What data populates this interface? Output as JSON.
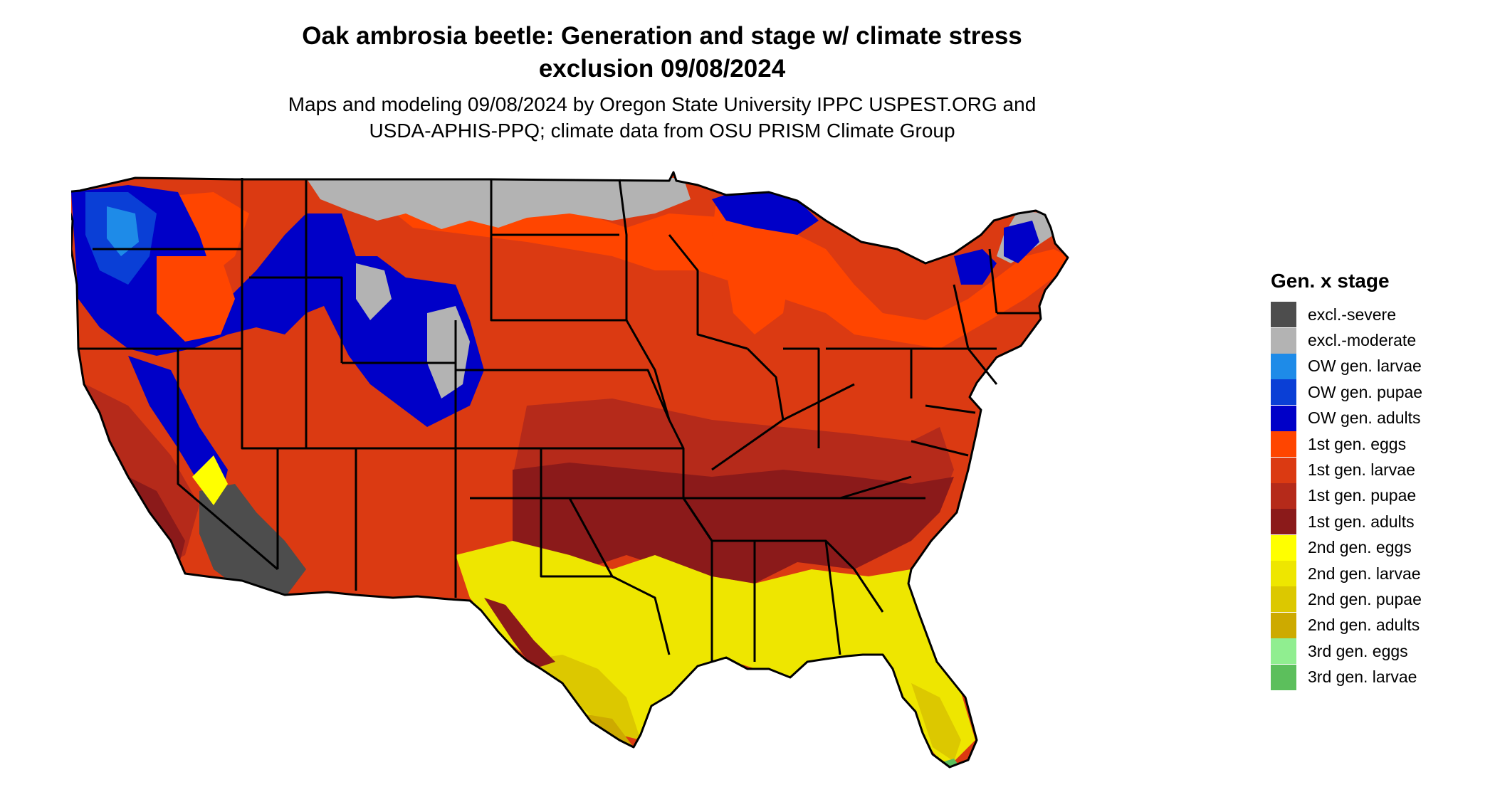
{
  "title": {
    "line1": "Oak ambrosia beetle: Generation and stage w/ climate stress",
    "line2": "exclusion 09/08/2024"
  },
  "subtitle": {
    "line1": "Maps and modeling 09/08/2024 by Oregon State University IPPC USPEST.ORG and",
    "line2": "USDA-APHIS-PPQ; climate data from OSU PRISM Climate Group"
  },
  "legend": {
    "title": "Gen. x stage",
    "items": [
      {
        "label": "excl.-severe",
        "color": "#4d4d4d"
      },
      {
        "label": "excl.-moderate",
        "color": "#b3b3b3"
      },
      {
        "label": "OW gen. larvae",
        "color": "#1e8be8"
      },
      {
        "label": "OW gen. pupae",
        "color": "#0a3fd6"
      },
      {
        "label": "OW gen. adults",
        "color": "#0000c8"
      },
      {
        "label": "1st gen. eggs",
        "color": "#ff4500"
      },
      {
        "label": "1st gen. larvae",
        "color": "#db3a12"
      },
      {
        "label": "1st gen. pupae",
        "color": "#b52a1a"
      },
      {
        "label": "1st gen. adults",
        "color": "#8b1a1a"
      },
      {
        "label": "2nd gen. eggs",
        "color": "#ffff00"
      },
      {
        "label": "2nd gen. larvae",
        "color": "#eee600"
      },
      {
        "label": "2nd gen. pupae",
        "color": "#dcc800"
      },
      {
        "label": "2nd gen. adults",
        "color": "#cdaa00"
      },
      {
        "label": "3rd gen. eggs",
        "color": "#90ee90"
      },
      {
        "label": "3rd gen. larvae",
        "color": "#5cbf5c"
      }
    ]
  },
  "map": {
    "colors": {
      "border": "#000000",
      "severe": "#4d4d4d",
      "moderate": "#b3b3b3",
      "ow_larvae": "#1e8be8",
      "ow_pupae": "#0a3fd6",
      "ow_adults": "#0000c8",
      "g1_eggs": "#ff4500",
      "g1_larvae": "#db3a12",
      "g1_pupae": "#b52a1a",
      "g1_adults": "#8b1a1a",
      "g2_eggs": "#ffff00",
      "g2_larvae": "#eee600",
      "g2_pupae": "#dcc800",
      "g2_adults": "#cdaa00",
      "g3_eggs": "#90ee90",
      "g3_larvae": "#5cbf5c"
    }
  }
}
